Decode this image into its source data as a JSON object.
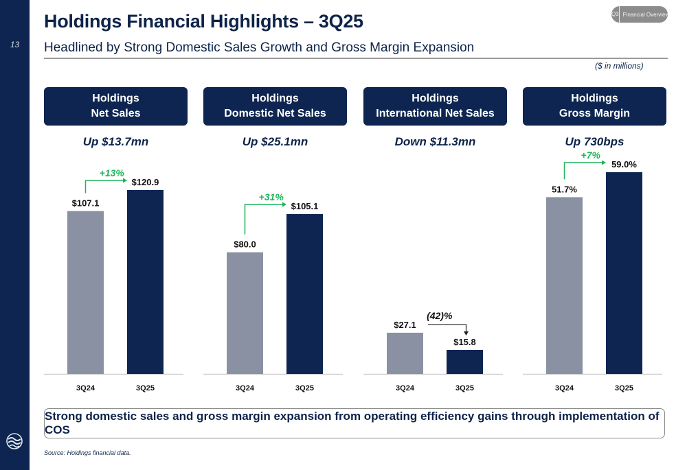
{
  "page": {
    "number": "13",
    "title": "Holdings Financial Highlights – 3Q25",
    "subtitle": "Headlined by Strong Domestic Sales Growth and Gross Margin Expansion",
    "units_note": "($ in millions)",
    "badge": {
      "quarter": "Q3",
      "section": "Financial Overview"
    },
    "footer": "Strong domestic sales and gross margin expansion from operating efficiency gains through implementation of COS",
    "source": "Source: Holdings financial data."
  },
  "colors": {
    "navy": "#0d2550",
    "gray_bar": "#8a91a3",
    "green": "#1fb35a",
    "axis": "#d0d0d0"
  },
  "panels": [
    {
      "header_line1": "Holdings",
      "header_line2": "Net Sales",
      "change": "Up $13.7mn"
    },
    {
      "header_line1": "Holdings",
      "header_line2": "Domestic Net Sales",
      "change": "Up $25.1mn"
    },
    {
      "header_line1": "Holdings",
      "header_line2": "International Net Sales",
      "change": "Down $11.3mn"
    },
    {
      "header_line1": "Holdings",
      "header_line2": "Gross Margin",
      "change": "Up 730bps"
    }
  ],
  "chart_data": [
    {
      "type": "bar",
      "title": "Holdings Net Sales",
      "categories": [
        "3Q24",
        "3Q25"
      ],
      "values": [
        107.1,
        120.9
      ],
      "labels": [
        "$107.1",
        "$120.9"
      ],
      "growth_label": "+13%",
      "growth_direction": "up",
      "ylim": [
        0,
        130
      ]
    },
    {
      "type": "bar",
      "title": "Holdings Domestic Net Sales",
      "categories": [
        "3Q24",
        "3Q25"
      ],
      "values": [
        80.0,
        105.1
      ],
      "labels": [
        "$80.0",
        "$105.1"
      ],
      "growth_label": "+31%",
      "growth_direction": "up",
      "ylim": [
        0,
        130
      ]
    },
    {
      "type": "bar",
      "title": "Holdings International Net Sales",
      "categories": [
        "3Q24",
        "3Q25"
      ],
      "values": [
        27.1,
        15.8
      ],
      "labels": [
        "$27.1",
        "$15.8"
      ],
      "growth_label": "(42)%",
      "growth_direction": "down",
      "ylim": [
        0,
        130
      ]
    },
    {
      "type": "bar",
      "title": "Holdings Gross Margin",
      "categories": [
        "3Q24",
        "3Q25"
      ],
      "values": [
        51.7,
        59.0
      ],
      "labels": [
        "51.7%",
        "59.0%"
      ],
      "growth_label": "+7%",
      "growth_direction": "up",
      "ylim": [
        0,
        63
      ]
    }
  ]
}
